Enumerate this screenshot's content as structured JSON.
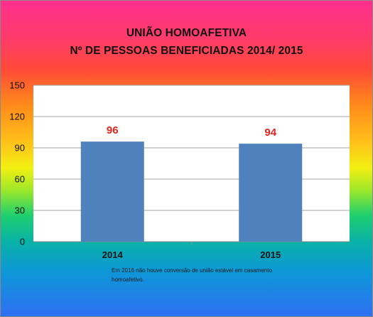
{
  "chart_data": {
    "type": "bar",
    "title_lines": [
      "UNIÃO HOMOAFETIVA",
      "Nº DE PESSOAS BENEFICIADAS 2014/ 2015"
    ],
    "categories": [
      "2014",
      "2015"
    ],
    "values": [
      96,
      94
    ],
    "ylim": [
      0,
      150
    ],
    "yticks": [
      "0",
      "30",
      "60",
      "90",
      "120",
      "150"
    ],
    "grid": true,
    "bar_color": "#4f81bd",
    "data_label_color": "#e8231c"
  },
  "note_text": "Em 2016 não houve conversão de união estável em casamento homoafetivo."
}
